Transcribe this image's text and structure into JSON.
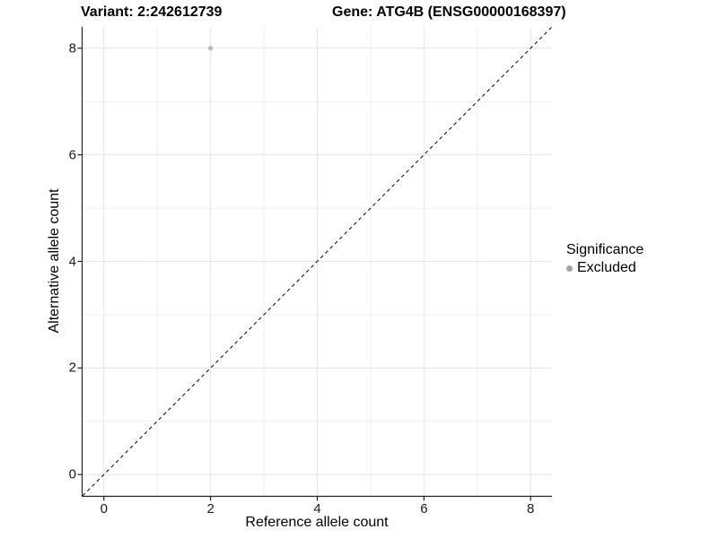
{
  "titles": {
    "left": "Variant: 2:242612739",
    "right": "Gene: ATG4B (ENSG00000168397)"
  },
  "chart_data": {
    "type": "scatter",
    "title_left": "Variant: 2:242612739",
    "title_right": "Gene: ATG4B (ENSG00000168397)",
    "xlabel": "Reference allele count",
    "ylabel": "Alternative allele count",
    "xlim": [
      -0.4,
      8.4
    ],
    "ylim": [
      -0.4,
      8.4
    ],
    "x_major_ticks": [
      0,
      2,
      4,
      6,
      8
    ],
    "y_major_ticks": [
      0,
      2,
      4,
      6,
      8
    ],
    "x_minor_ticks": [
      1,
      3,
      5,
      7
    ],
    "y_minor_ticks": [
      1,
      3,
      5,
      7
    ],
    "grid": true,
    "series": [
      {
        "name": "Excluded",
        "color": "#b9b9b9",
        "points": [
          {
            "x": 2,
            "y": 8
          }
        ]
      }
    ],
    "reference_line": {
      "type": "identity",
      "slope": 1,
      "intercept": 0,
      "style": "dashed",
      "color": "#000000"
    },
    "legend": {
      "title": "Significance",
      "position": "right",
      "items": [
        {
          "label": "Excluded",
          "color": "#a3a3a3"
        }
      ]
    }
  },
  "style_colors": {
    "axis_line": "#222222",
    "major_grid": "#e4e4e4",
    "minor_grid": "#efefef",
    "tick_mark": "#222222"
  }
}
